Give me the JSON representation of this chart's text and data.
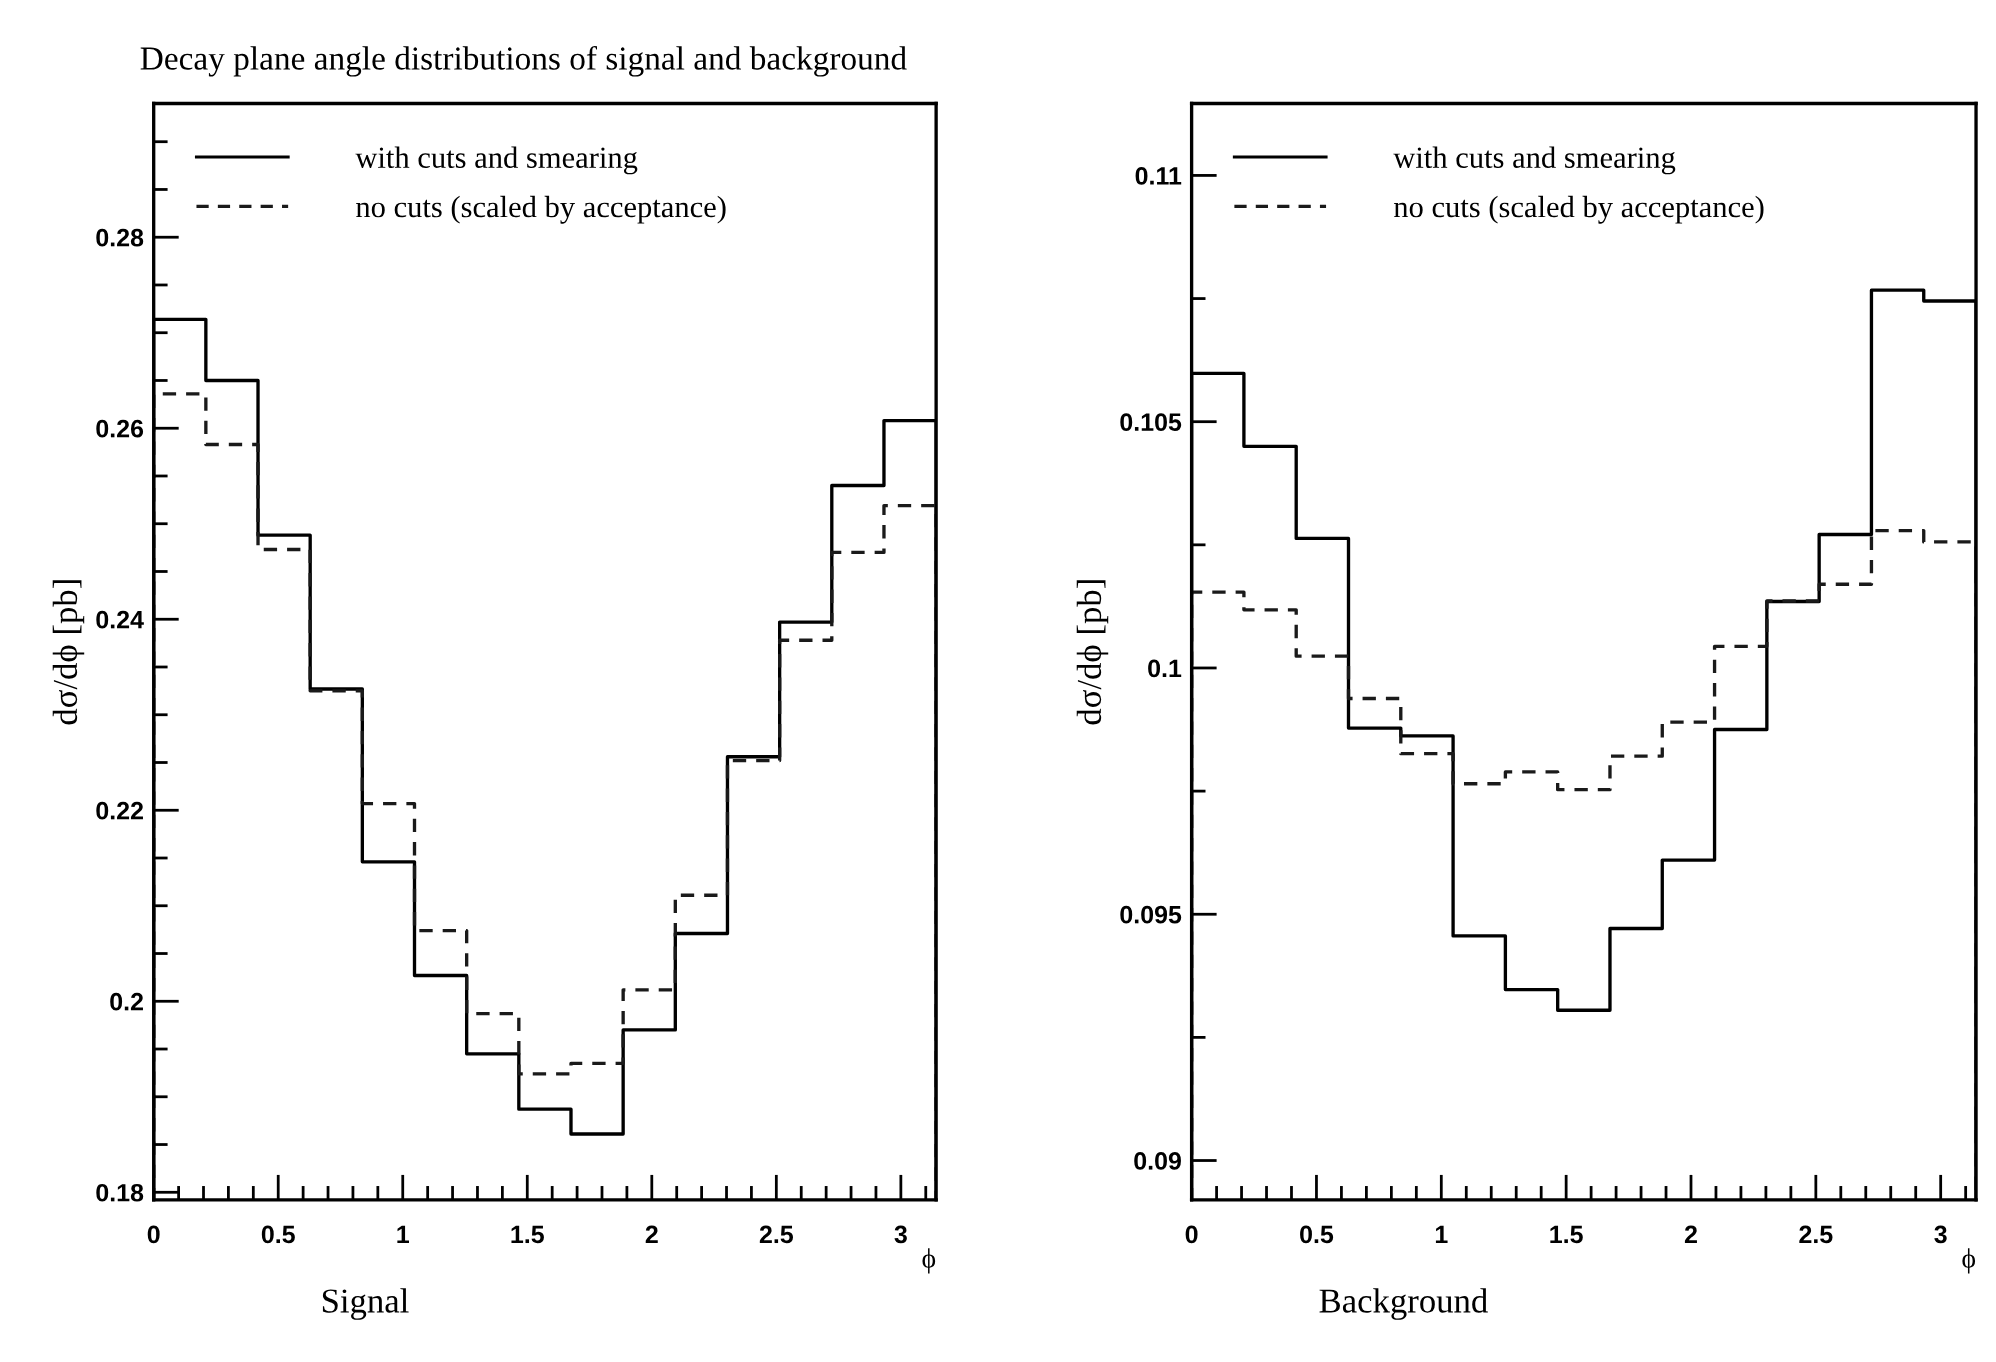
{
  "chart_data": [
    {
      "type": "histogram",
      "title": "Decay plane angle distributions of signal and background",
      "xlabel": "ϕ",
      "ylabel": "dσ/dϕ [pb]",
      "annotations": [
        "Signal"
      ],
      "bins": [
        0,
        0.20944,
        0.41888,
        0.62832,
        0.83776,
        1.0472,
        1.25664,
        1.46608,
        1.67552,
        1.88496,
        2.0944,
        2.30383,
        2.51327,
        2.72271,
        2.93215,
        3.14159
      ],
      "series": [
        {
          "name": "with cuts and smearing",
          "color": "#000000",
          "line_style": "solid",
          "values": [
            0.2714,
            0.265,
            0.2488,
            0.2327,
            0.2146,
            0.2027,
            0.1945,
            0.1887,
            0.1861,
            0.197,
            0.2071,
            0.2256,
            0.2397,
            0.254,
            0.2608
          ]
        },
        {
          "name": "no cuts (scaled by acceptance)",
          "color": "#1a1a1a",
          "line_style": "dashed",
          "values": [
            0.2636,
            0.2583,
            0.2473,
            0.2325,
            0.2207,
            0.2074,
            0.1987,
            0.1924,
            0.1935,
            0.2012,
            0.2111,
            0.2252,
            0.2378,
            0.247,
            0.2519
          ]
        }
      ],
      "xlim": [
        0,
        3.14159
      ],
      "ylim": [
        0.1792,
        0.294
      ],
      "xticks": [
        0,
        {
          "value": 0.1,
          "label": null
        },
        {
          "value": 0.2,
          "label": null
        },
        {
          "value": 0.3,
          "label": null
        },
        {
          "value": 0.4,
          "label": null
        },
        0.5,
        {
          "value": 0.6,
          "label": null
        },
        {
          "value": 0.7,
          "label": null
        },
        {
          "value": 0.8,
          "label": null
        },
        {
          "value": 0.9,
          "label": null
        },
        1,
        {
          "value": 1.1,
          "label": null
        },
        {
          "value": 1.2,
          "label": null
        },
        {
          "value": 1.3,
          "label": null
        },
        {
          "value": 1.4,
          "label": null
        },
        1.5,
        {
          "value": 1.6,
          "label": null
        },
        {
          "value": 1.7,
          "label": null
        },
        {
          "value": 1.8,
          "label": null
        },
        {
          "value": 1.9,
          "label": null
        },
        2,
        {
          "value": 2.1,
          "label": null
        },
        {
          "value": 2.2,
          "label": null
        },
        {
          "value": 2.3,
          "label": null
        },
        {
          "value": 2.4,
          "label": null
        },
        2.5,
        {
          "value": 2.6,
          "label": null
        },
        {
          "value": 2.7,
          "label": null
        },
        {
          "value": 2.8,
          "label": null
        },
        {
          "value": 2.9,
          "label": null
        },
        3,
        {
          "value": 3.1,
          "label": null
        }
      ],
      "yticks": [
        0.18,
        {
          "value": 0.185,
          "label": null
        },
        0.2,
        {
          "value": 0.19,
          "label": null
        },
        {
          "value": 0.195,
          "label": null
        },
        {
          "value": 0.205,
          "label": null
        },
        {
          "value": 0.21,
          "label": null
        },
        {
          "value": 0.215,
          "label": null
        },
        0.22,
        {
          "value": 0.225,
          "label": null
        },
        {
          "value": 0.23,
          "label": null
        },
        {
          "value": 0.235,
          "label": null
        },
        0.24,
        {
          "value": 0.245,
          "label": null
        },
        {
          "value": 0.25,
          "label": null
        },
        {
          "value": 0.255,
          "label": null
        },
        0.26,
        {
          "value": 0.265,
          "label": null
        },
        {
          "value": 0.27,
          "label": null
        },
        {
          "value": 0.275,
          "label": null
        },
        0.28,
        {
          "value": 0.285,
          "label": null
        },
        {
          "value": 0.29,
          "label": null
        }
      ],
      "legend": "top left",
      "grid": false
    },
    {
      "type": "histogram",
      "xlabel": "ϕ",
      "ylabel": "dσ/dϕ [pb]",
      "annotations": [
        "Background"
      ],
      "bins": [
        0,
        0.20944,
        0.41888,
        0.62832,
        0.83776,
        1.0472,
        1.25664,
        1.46608,
        1.67552,
        1.88496,
        2.0944,
        2.30383,
        2.51327,
        2.72271,
        2.93215,
        3.14159
      ],
      "series": [
        {
          "name": "with cuts and smearing",
          "color": "#000000",
          "line_style": "solid",
          "values": [
            0.10598,
            0.1045,
            0.10263,
            0.09878,
            0.09862,
            0.09456,
            0.09347,
            0.09305,
            0.09471,
            0.0961,
            0.09875,
            0.10135,
            0.10271,
            0.10767,
            0.10745
          ]
        },
        {
          "name": "no cuts (scaled by acceptance)",
          "color": "#1a1a1a",
          "line_style": "dashed",
          "values": [
            0.10154,
            0.10118,
            0.10024,
            0.09938,
            0.09826,
            0.09765,
            0.09789,
            0.09753,
            0.09821,
            0.0989,
            0.10044,
            0.10136,
            0.1017,
            0.10279,
            0.10256
          ]
        }
      ],
      "xlim": [
        0,
        3.14159
      ],
      "ylim": [
        0.0892,
        0.11146
      ],
      "xticks": [
        0,
        {
          "value": 0.1,
          "label": null
        },
        {
          "value": 0.2,
          "label": null
        },
        {
          "value": 0.3,
          "label": null
        },
        {
          "value": 0.4,
          "label": null
        },
        0.5,
        {
          "value": 0.6,
          "label": null
        },
        {
          "value": 0.7,
          "label": null
        },
        {
          "value": 0.8,
          "label": null
        },
        {
          "value": 0.9,
          "label": null
        },
        1,
        {
          "value": 1.1,
          "label": null
        },
        {
          "value": 1.2,
          "label": null
        },
        {
          "value": 1.3,
          "label": null
        },
        {
          "value": 1.4,
          "label": null
        },
        1.5,
        {
          "value": 1.6,
          "label": null
        },
        {
          "value": 1.7,
          "label": null
        },
        {
          "value": 1.8,
          "label": null
        },
        {
          "value": 1.9,
          "label": null
        },
        2,
        {
          "value": 2.1,
          "label": null
        },
        {
          "value": 2.2,
          "label": null
        },
        {
          "value": 2.3,
          "label": null
        },
        {
          "value": 2.4,
          "label": null
        },
        2.5,
        {
          "value": 2.6,
          "label": null
        },
        {
          "value": 2.7,
          "label": null
        },
        {
          "value": 2.8,
          "label": null
        },
        {
          "value": 2.9,
          "label": null
        },
        3,
        {
          "value": 3.1,
          "label": null
        }
      ],
      "yticks": [
        0.09,
        {
          "value": 0.0925,
          "label": null
        },
        0.095,
        {
          "value": 0.0975,
          "label": null
        },
        0.1,
        {
          "value": 0.1025,
          "label": null
        },
        0.105,
        {
          "value": 0.1075,
          "label": null
        },
        0.11
      ],
      "legend": "top left",
      "grid": false
    }
  ]
}
